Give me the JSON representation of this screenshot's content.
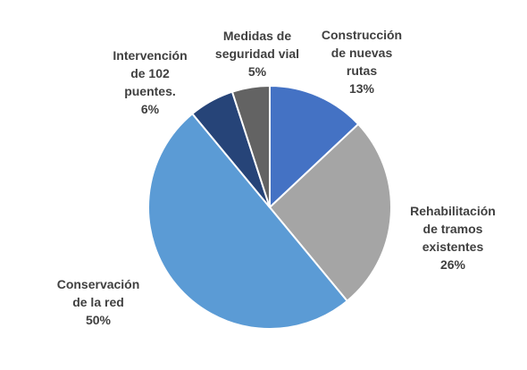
{
  "chart_data": {
    "type": "pie",
    "title": "",
    "start_angle_deg": 0,
    "direction": "clockwise",
    "slices": [
      {
        "label_lines": [
          "Construcción",
          "de nuevas",
          "rutas"
        ],
        "value": 13,
        "value_label": "13%",
        "color": "#4472C4"
      },
      {
        "label_lines": [
          "Rehabilitación",
          "de tramos",
          "existentes"
        ],
        "value": 26,
        "value_label": "26%",
        "color": "#A5A5A5"
      },
      {
        "label_lines": [
          "Conservación",
          "de la red"
        ],
        "value": 50,
        "value_label": "50%",
        "color": "#5B9BD5"
      },
      {
        "label_lines": [
          "Intervención",
          "de 102",
          "puentes."
        ],
        "value": 6,
        "value_label": "6%",
        "color": "#264478"
      },
      {
        "label_lines": [
          "Medidas de",
          "seguridad vial"
        ],
        "value": 5,
        "value_label": "5%",
        "color": "#636363"
      }
    ]
  }
}
